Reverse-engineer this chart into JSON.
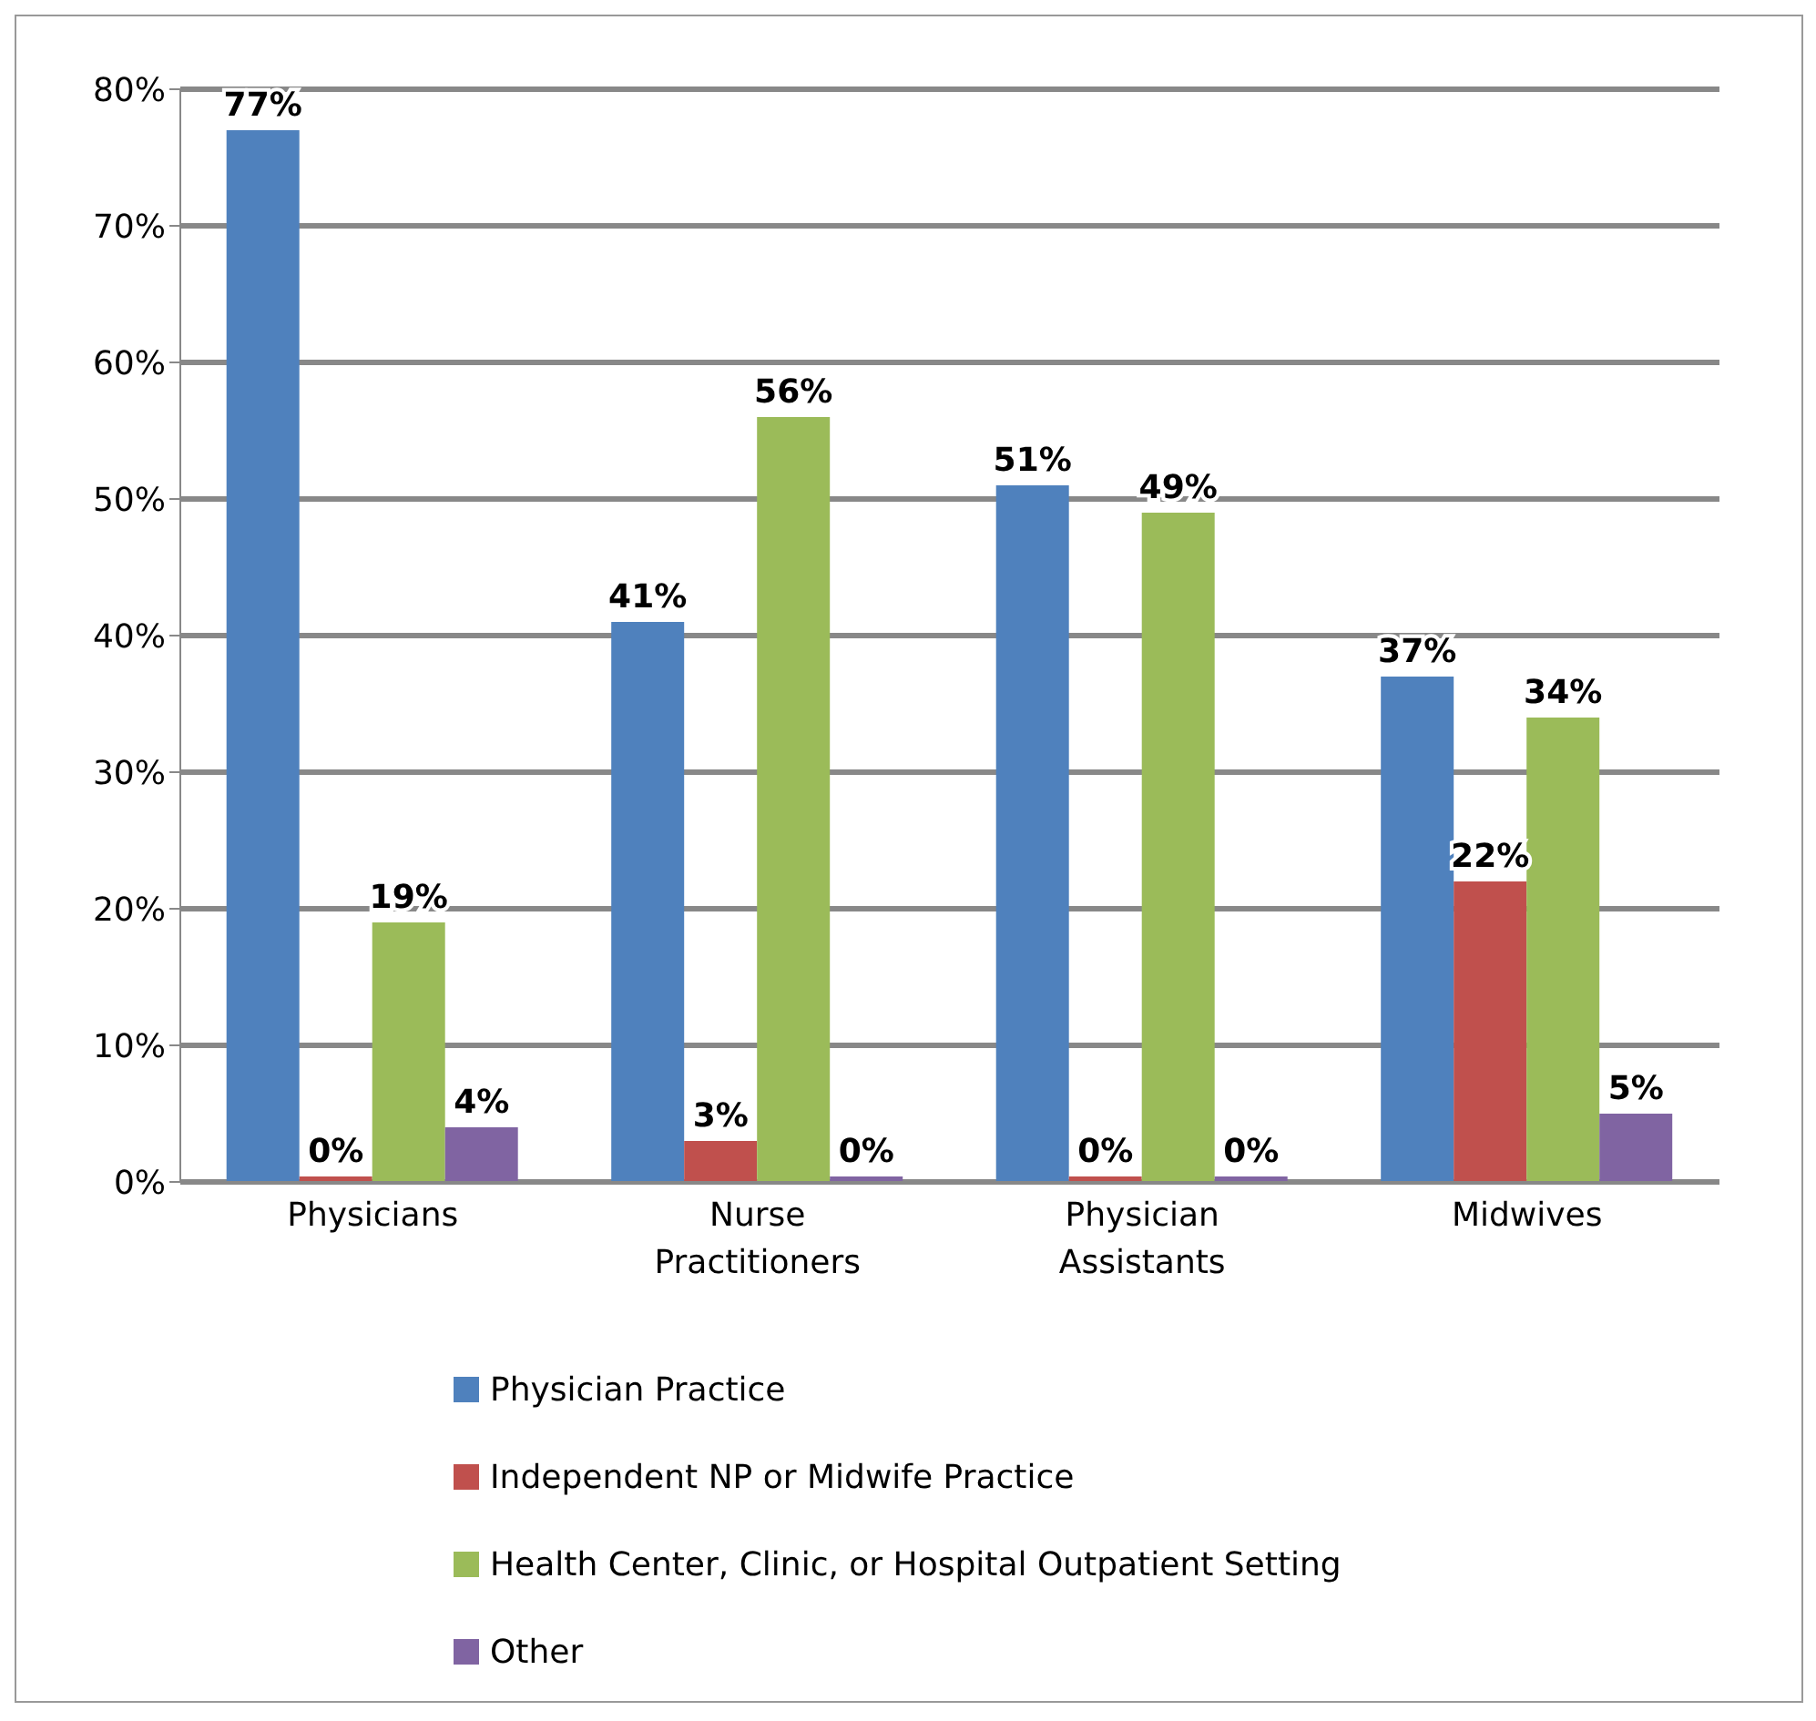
{
  "chart_data": {
    "type": "bar",
    "categories": [
      "Physicians",
      "Nurse Practitioners",
      "Physician Assistants",
      "Midwives"
    ],
    "series": [
      {
        "name": "Physician Practice",
        "color": "#4f81bd",
        "values": [
          77,
          41,
          51,
          37
        ],
        "value_labels": [
          "77%",
          "41%",
          "51%",
          "37%"
        ]
      },
      {
        "name": "Independent NP or Midwife Practice",
        "color": "#c0504d",
        "values": [
          0,
          3,
          0,
          22
        ],
        "value_labels": [
          "0%",
          "3%",
          "0%",
          "22%"
        ]
      },
      {
        "name": "Health Center, Clinic, or Hospital Outpatient Setting",
        "color": "#9bbb59",
        "values": [
          19,
          56,
          49,
          34
        ],
        "value_labels": [
          "19%",
          "56%",
          "49%",
          "34%"
        ]
      },
      {
        "name": "Other",
        "color": "#8064a2",
        "values": [
          4,
          0,
          0,
          5
        ],
        "value_labels": [
          "4%",
          "0%",
          "0%",
          "5%"
        ]
      }
    ],
    "ylim": [
      0,
      80
    ],
    "yticks": [
      {
        "value": 0,
        "label": "0%"
      },
      {
        "value": 10,
        "label": "10%"
      },
      {
        "value": 20,
        "label": "20%"
      },
      {
        "value": 30,
        "label": "30%"
      },
      {
        "value": 40,
        "label": "40%"
      },
      {
        "value": 50,
        "label": "50%"
      },
      {
        "value": 60,
        "label": "60%"
      },
      {
        "value": 70,
        "label": "70%"
      },
      {
        "value": 80,
        "label": "80%"
      }
    ],
    "grid": "y",
    "legend": "bottom"
  }
}
